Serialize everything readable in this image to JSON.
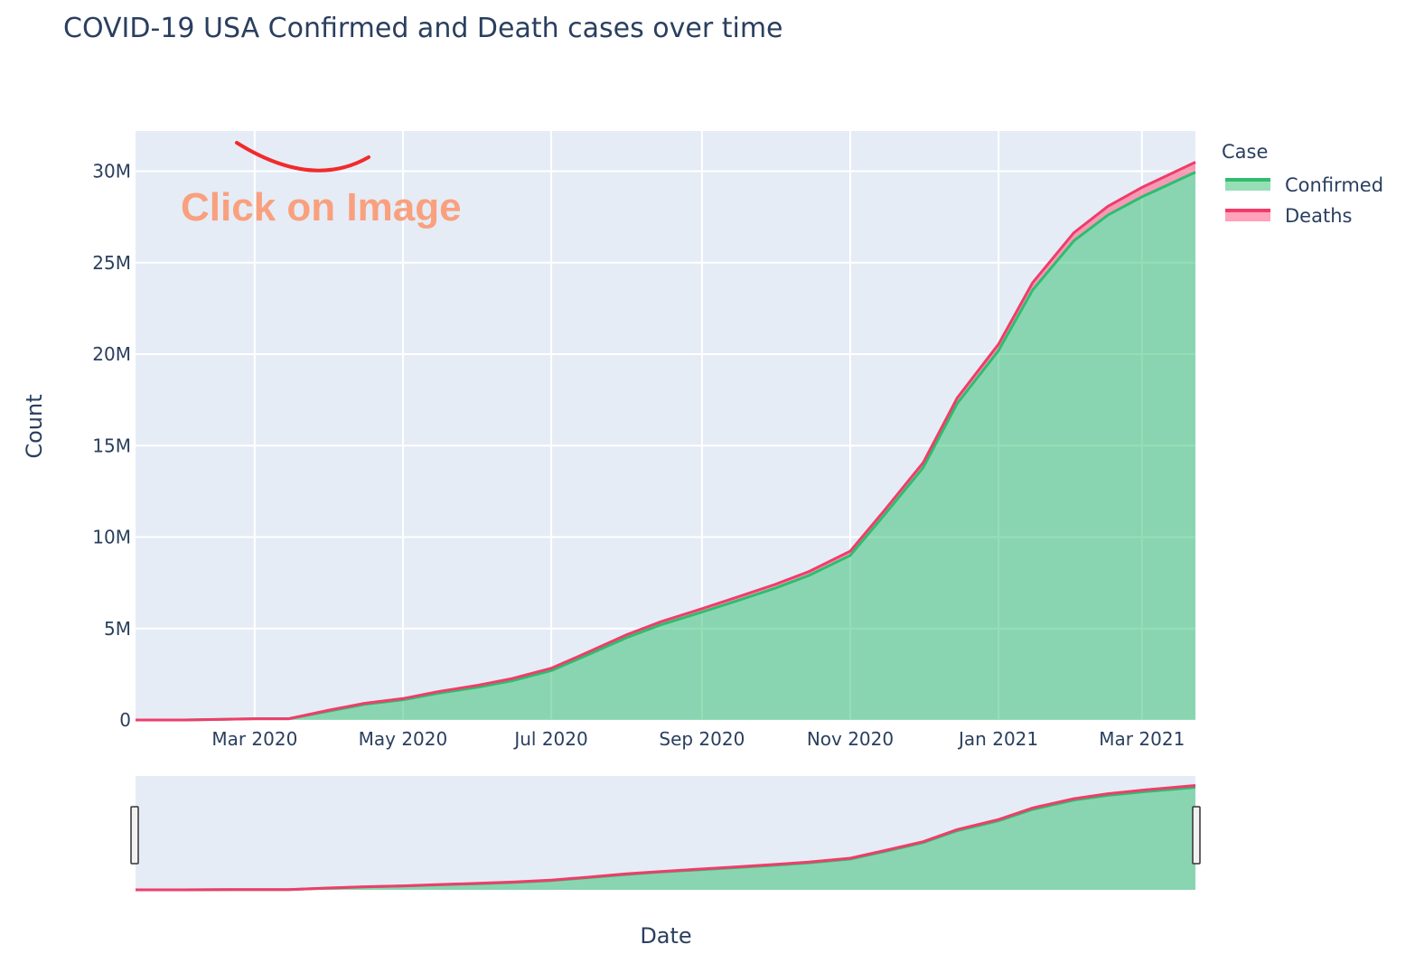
{
  "chart_data": {
    "type": "area",
    "title": "COVID-19 USA Confirmed and Death cases over time",
    "xlabel": "Date",
    "ylabel": "Count",
    "x_range": [
      "2020-01-12",
      "2021-03-23"
    ],
    "ylim": [
      0,
      32200000
    ],
    "y_ticks": [
      0,
      5000000,
      10000000,
      15000000,
      20000000,
      25000000,
      30000000
    ],
    "y_tick_labels": [
      "0",
      "5M",
      "10M",
      "15M",
      "20M",
      "25M",
      "30M"
    ],
    "x_ticks": [
      "2020-03-01",
      "2020-05-01",
      "2020-07-01",
      "2020-09-01",
      "2020-11-01",
      "2021-01-01",
      "2021-03-01"
    ],
    "x_tick_labels": [
      "Mar 2020",
      "May 2020",
      "Jul 2020",
      "Sep 2020",
      "Nov 2020",
      "Jan 2021",
      "Mar 2021"
    ],
    "stacked": true,
    "grid": true,
    "legend_title": "Case",
    "legend_position": "right",
    "x": [
      "2020-01-12",
      "2020-02-01",
      "2020-03-01",
      "2020-03-15",
      "2020-04-01",
      "2020-04-15",
      "2020-05-01",
      "2020-05-15",
      "2020-06-01",
      "2020-06-15",
      "2020-07-01",
      "2020-07-15",
      "2020-08-01",
      "2020-08-15",
      "2020-09-01",
      "2020-09-15",
      "2020-10-01",
      "2020-10-15",
      "2020-11-01",
      "2020-11-15",
      "2020-12-01",
      "2020-12-15",
      "2021-01-01",
      "2021-01-15",
      "2021-02-01",
      "2021-02-15",
      "2021-03-01",
      "2021-03-23"
    ],
    "series": [
      {
        "name": "Confirmed",
        "color": "#2ebd6e",
        "fill": "rgba(46,189,110,0.5)",
        "values": [
          0,
          10,
          70000,
          70000,
          500000,
          850000,
          1100000,
          1450000,
          1800000,
          2150000,
          2700000,
          3500000,
          4500000,
          5200000,
          5900000,
          6500000,
          7200000,
          7900000,
          9000000,
          11200000,
          13800000,
          17300000,
          20200000,
          23500000,
          26200000,
          27600000,
          28600000,
          29950000
        ]
      },
      {
        "name": "Deaths",
        "color": "#ef3d6a",
        "fill": "rgba(255,100,140,0.6)",
        "values": [
          0,
          0,
          1000,
          1000,
          50000,
          60000,
          70000,
          90000,
          100000,
          115000,
          130000,
          140000,
          160000,
          170000,
          185000,
          195000,
          210000,
          215000,
          230000,
          250000,
          270000,
          300000,
          345000,
          400000,
          440000,
          480000,
          515000,
          545000
        ]
      }
    ]
  },
  "annotation": {
    "text": "Click on Image",
    "color": "#f9a07e",
    "arrow_color": "#f22a2a"
  },
  "colors": {
    "plot_bg": "#e5ecf6",
    "grid": "#ffffff",
    "text": "#2a3f5f"
  }
}
